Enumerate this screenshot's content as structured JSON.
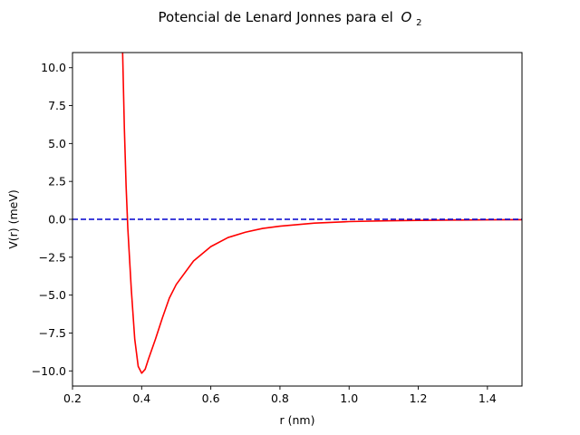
{
  "chart_data": {
    "type": "line",
    "title": "Potencial de Lenard Jonnes para el",
    "title_math": {
      "base": "O",
      "subscript": "2"
    },
    "xlabel": "r (nm)",
    "ylabel": "V(r) (meV)",
    "xlim": [
      0.2,
      1.5
    ],
    "ylim": [
      -11,
      11
    ],
    "x_ticks": [
      0.2,
      0.4,
      0.6,
      0.8,
      1.0,
      1.2,
      1.4
    ],
    "x_tick_labels": [
      "0.2",
      "0.4",
      "0.6",
      "0.8",
      "1.0",
      "1.2",
      "1.4"
    ],
    "y_ticks": [
      10.0,
      7.5,
      5.0,
      2.5,
      0.0,
      -2.5,
      -5.0,
      -7.5,
      -10.0
    ],
    "y_tick_labels": [
      "10.0",
      "7.5",
      "5.0",
      "2.5",
      "0.0",
      "−2.5",
      "−5.0",
      "−7.5",
      "−10.0"
    ],
    "grid": false,
    "series": [
      {
        "color": "#ff0000",
        "style": "solid",
        "x": [
          0.345,
          0.35,
          0.355,
          0.36,
          0.37,
          0.38,
          0.39,
          0.4,
          0.41,
          0.42,
          0.44,
          0.46,
          0.48,
          0.5,
          0.55,
          0.6,
          0.65,
          0.7,
          0.75,
          0.8,
          0.9,
          1.0,
          1.1,
          1.2,
          1.3,
          1.4,
          1.5
        ],
        "y": [
          11.0,
          6.0,
          2.2,
          -0.6,
          -4.6,
          -7.9,
          -9.7,
          -10.15,
          -9.9,
          -9.2,
          -7.9,
          -6.5,
          -5.2,
          -4.3,
          -2.75,
          -1.8,
          -1.2,
          -0.85,
          -0.6,
          -0.45,
          -0.25,
          -0.15,
          -0.1,
          -0.07,
          -0.05,
          -0.035,
          -0.025
        ]
      },
      {
        "color": "#0000cd",
        "style": "dashed",
        "x": [
          0.2,
          1.5
        ],
        "y": [
          0.0,
          0.0
        ]
      }
    ]
  }
}
